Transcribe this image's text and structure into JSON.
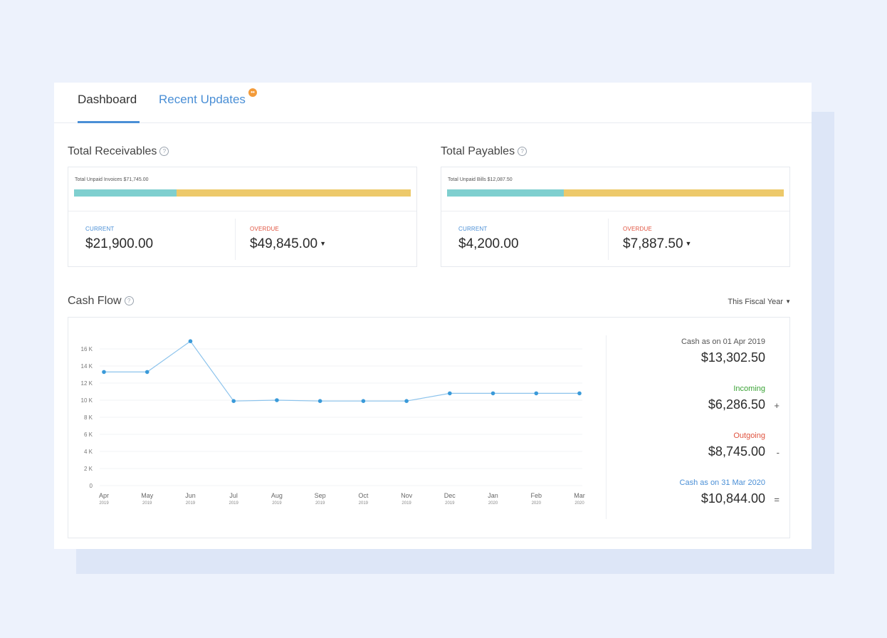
{
  "tabs": {
    "dashboard": "Dashboard",
    "recent_updates": "Recent Updates",
    "badge": "••"
  },
  "receivables": {
    "title": "Total Receivables",
    "unpaid_label": "Total Unpaid Invoices $71,745.00",
    "current_label": "CURRENT",
    "current_value": "$21,900.00",
    "overdue_label": "OVERDUE",
    "overdue_value": "$49,845.00",
    "current_fraction": 0.305
  },
  "payables": {
    "title": "Total Payables",
    "unpaid_label": "Total Unpaid Bills $12,087.50",
    "current_label": "CURRENT",
    "current_value": "$4,200.00",
    "overdue_label": "OVERDUE",
    "overdue_value": "$7,887.50",
    "current_fraction": 0.347
  },
  "cashflow": {
    "title": "Cash Flow",
    "period": "This Fiscal Year",
    "opening_label": "Cash as on 01 Apr 2019",
    "opening_value": "$13,302.50",
    "incoming_label": "Incoming",
    "incoming_value": "$6,286.50",
    "incoming_op": "+",
    "outgoing_label": "Outgoing",
    "outgoing_value": "$8,745.00",
    "outgoing_op": "-",
    "closing_label": "Cash as on 31 Mar 2020",
    "closing_value": "$10,844.00",
    "closing_op": "="
  },
  "colors": {
    "accent": "#4a8fd6",
    "incoming": "#3aa335",
    "outgoing": "#e0533f",
    "bar_current": "#7fcfcf",
    "bar_overdue": "#edc96a",
    "line": "#8cc3ec",
    "point": "#3a9ad9"
  },
  "chart_data": {
    "type": "line",
    "categories": [
      "Apr 2019",
      "May 2019",
      "Jun 2019",
      "Jul 2019",
      "Aug 2019",
      "Sep 2019",
      "Oct 2019",
      "Nov 2019",
      "Dec 2019",
      "Jan 2020",
      "Feb 2020",
      "Mar 2020"
    ],
    "x_tick_labels": [
      [
        "Apr",
        "2019"
      ],
      [
        "May",
        "2019"
      ],
      [
        "Jun",
        "2019"
      ],
      [
        "Jul",
        "2019"
      ],
      [
        "Aug",
        "2019"
      ],
      [
        "Sep",
        "2019"
      ],
      [
        "Oct",
        "2019"
      ],
      [
        "Nov",
        "2019"
      ],
      [
        "Dec",
        "2019"
      ],
      [
        "Jan",
        "2020"
      ],
      [
        "Feb",
        "2020"
      ],
      [
        "Mar",
        "2020"
      ]
    ],
    "series": [
      {
        "values": [
          13300,
          13300,
          16900,
          9900,
          10000,
          9900,
          9900,
          9900,
          10800,
          10800,
          10800,
          10800
        ]
      }
    ],
    "y_ticks": [
      0,
      2000,
      4000,
      6000,
      8000,
      10000,
      12000,
      14000,
      16000
    ],
    "y_tick_labels": [
      "0",
      "2 K",
      "4 K",
      "6 K",
      "8 K",
      "10 K",
      "12 K",
      "14 K",
      "16 K"
    ],
    "ylim": [
      0,
      18000
    ],
    "grid": true,
    "legend": "none"
  }
}
